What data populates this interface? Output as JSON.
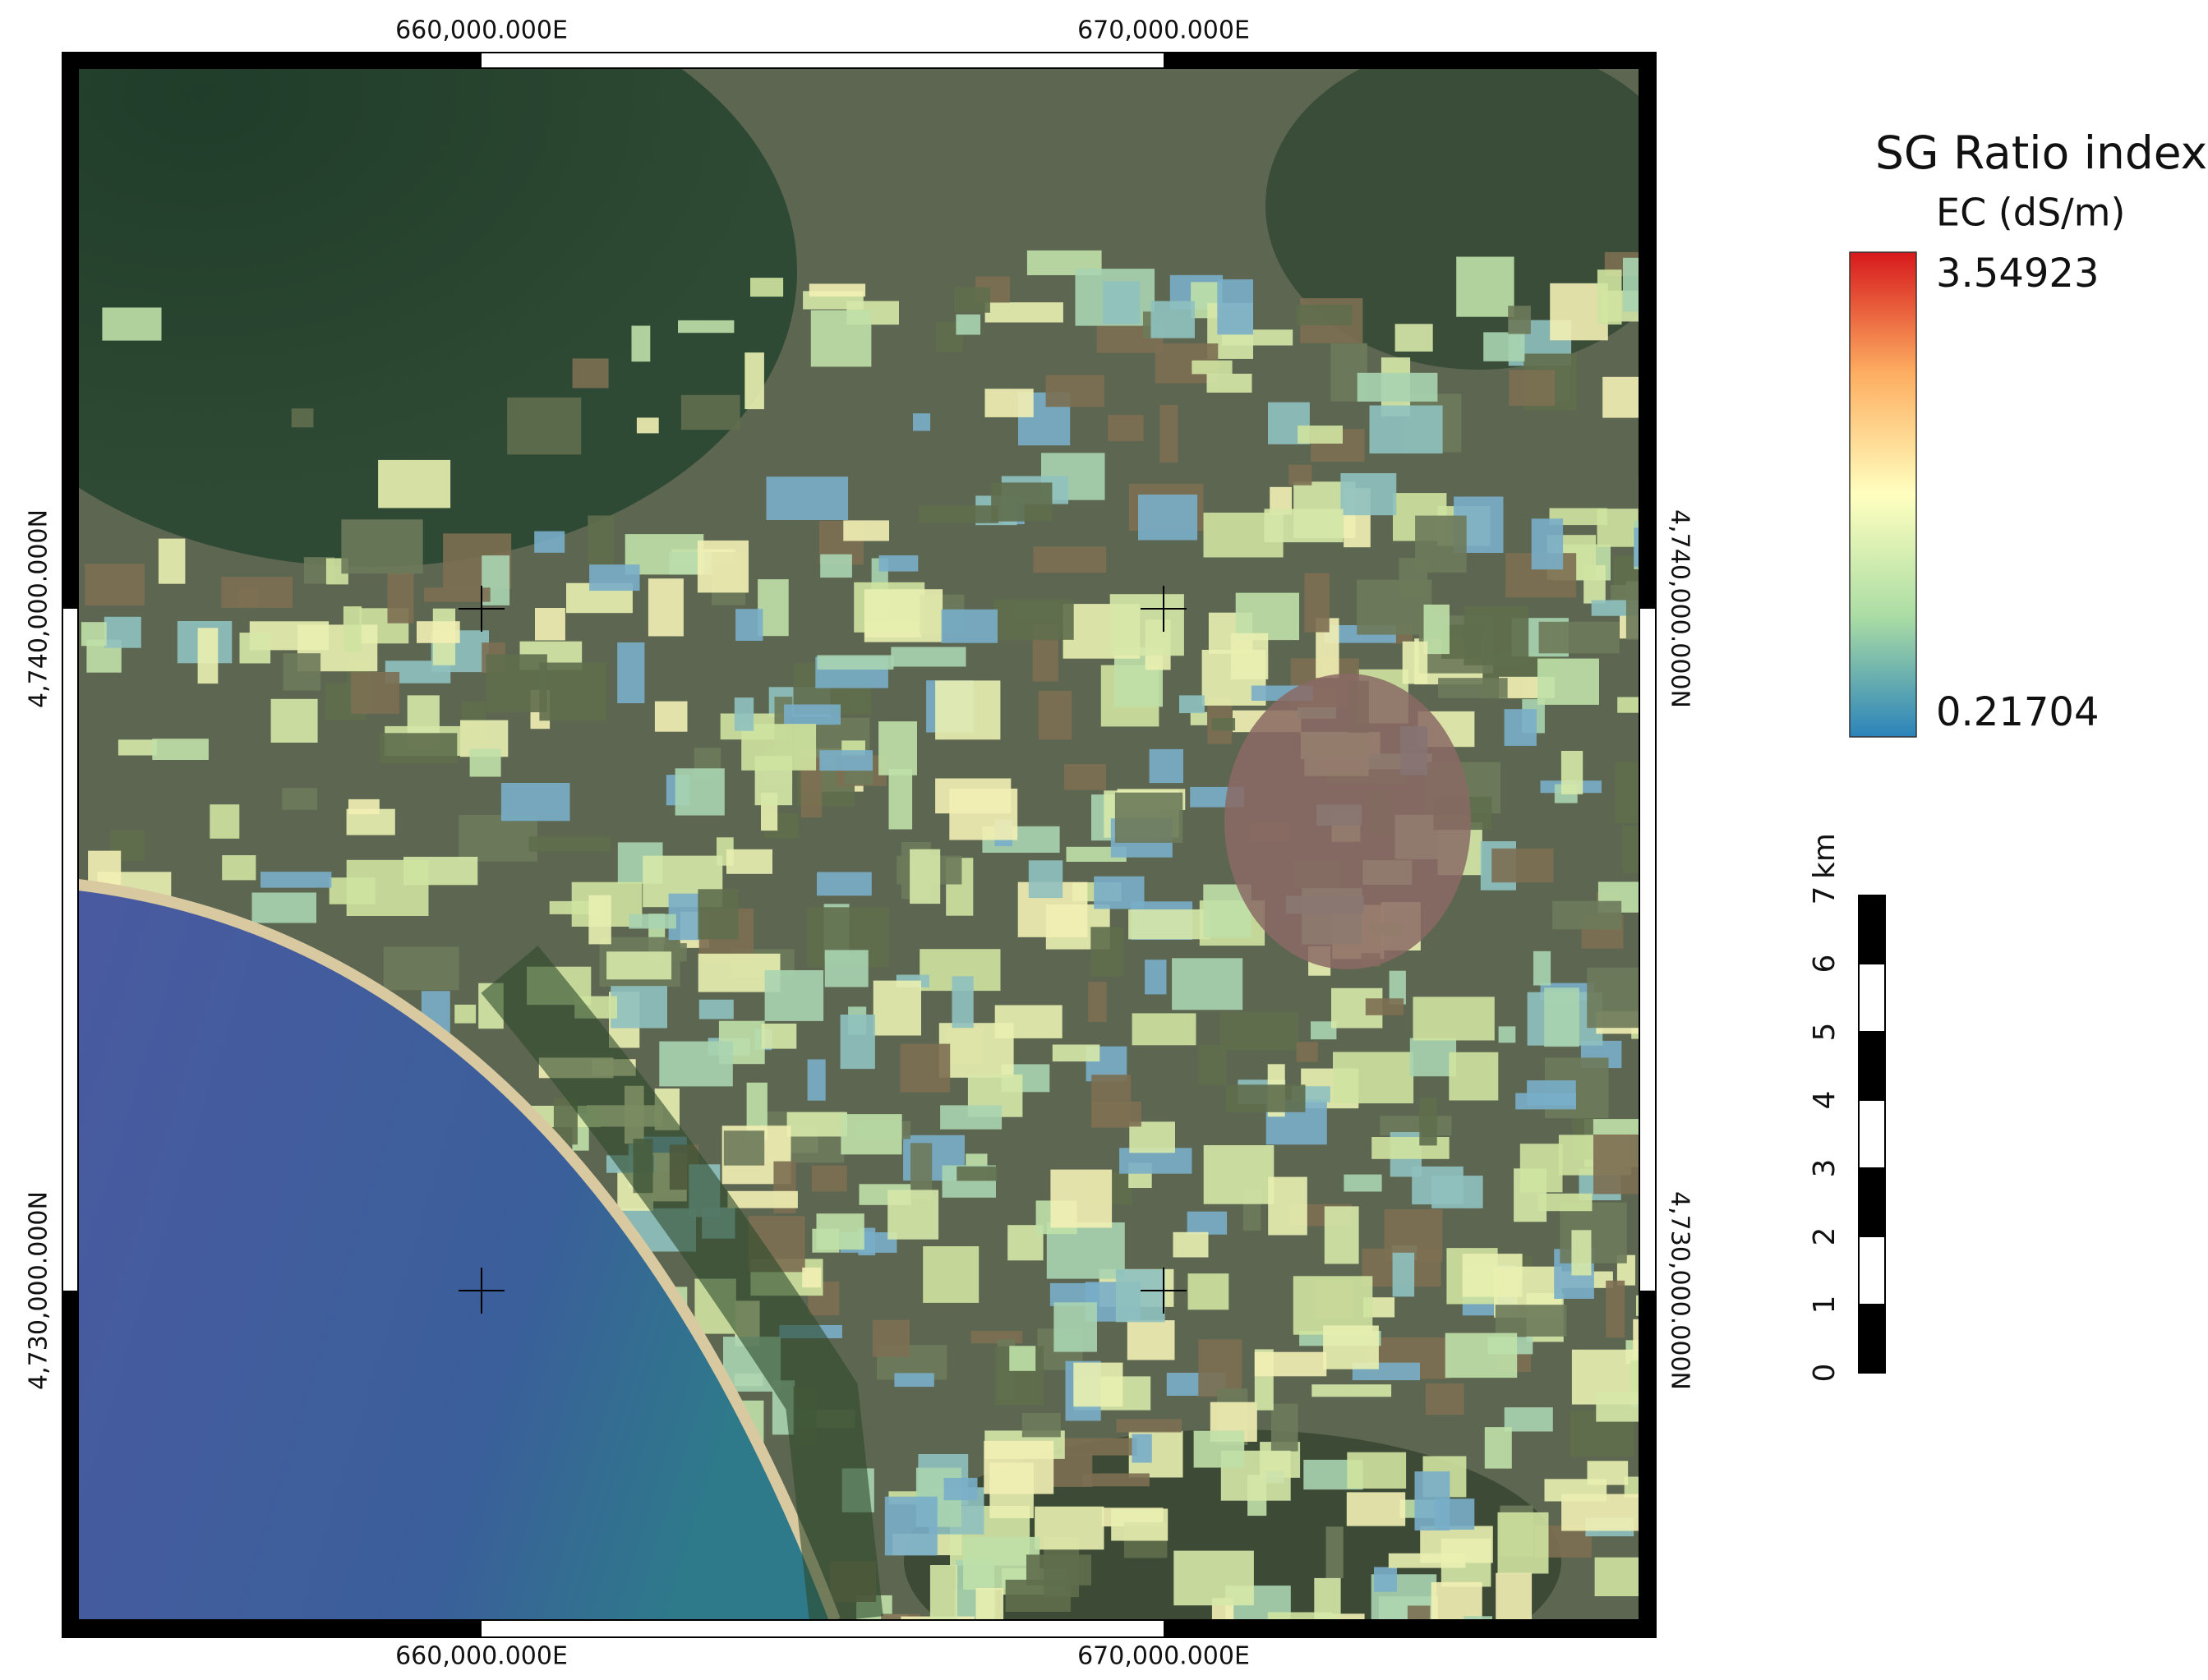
{
  "map": {
    "legend": {
      "title": "SG Ratio index",
      "subtitle": "EC (dS/m)",
      "max": 3.54923,
      "min": 0.21704
    },
    "grid": {
      "x_labels": [
        "660,000.000E",
        "670,000.000E"
      ],
      "y_labels": [
        "4,740,000.000N",
        "4,730,000.000N"
      ]
    },
    "scale_bar": {
      "unit": "km",
      "ticks": [
        0,
        1,
        2,
        3,
        4,
        5,
        6,
        7
      ]
    }
  }
}
